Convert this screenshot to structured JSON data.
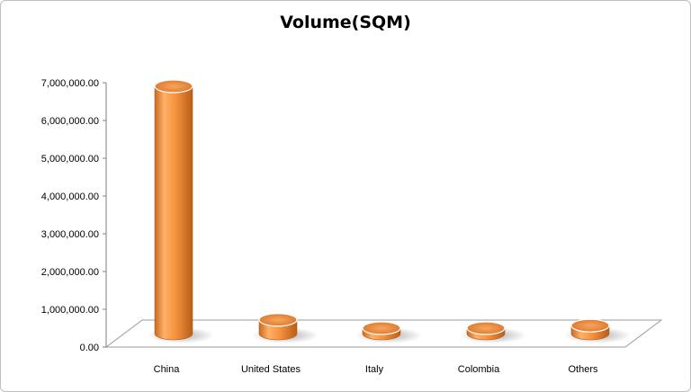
{
  "chart_data": {
    "type": "bar",
    "title": "Volume(SQM)",
    "categories": [
      "China",
      "United States",
      "Italy",
      "Colombia",
      "Others"
    ],
    "values": [
      6850000,
      380000,
      50000,
      40000,
      220000
    ],
    "ylim": [
      0,
      7000000
    ],
    "yticks": [
      "0.00",
      "1,000,000.00",
      "2,000,000.00",
      "3,000,000.00",
      "4,000,000.00",
      "5,000,000.00",
      "6,000,000.00",
      "7,000,000.00"
    ],
    "xlabel": "",
    "ylabel": "",
    "grid": false,
    "legend": "none",
    "bar_color": "#f5923e"
  }
}
